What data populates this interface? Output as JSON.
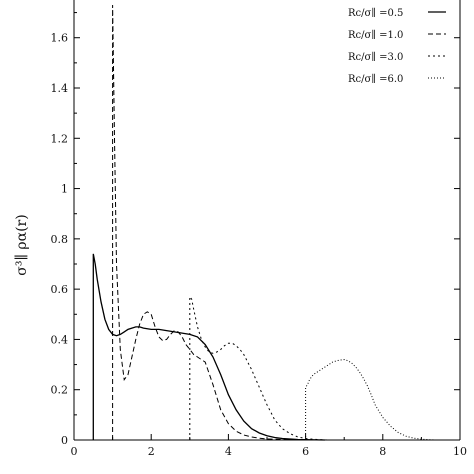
{
  "chart_data": {
    "type": "line",
    "title": "",
    "xlabel": "",
    "ylabel": "σ³∥ ρα(r)",
    "xlim": [
      0,
      10
    ],
    "ylim": [
      0,
      1.75
    ],
    "x_ticks": [
      0,
      2,
      4,
      6,
      8,
      10
    ],
    "y_ticks": [
      0,
      0.2,
      0.4,
      0.6,
      0.8,
      1,
      1.2,
      1.4,
      1.6
    ],
    "x_tick_labels": [
      "0",
      "2",
      "4",
      "6",
      "8",
      "10"
    ],
    "y_tick_labels": [
      "0",
      "0.2",
      "0.4",
      "0.6",
      "0.8",
      "1",
      "1.2",
      "1.4",
      "1.6"
    ],
    "grid": false,
    "legend_position": "top-right",
    "series": [
      {
        "name": "Rc/σ∥ =0.5",
        "style": "solid",
        "x": [
          0.5,
          0.5,
          0.55,
          0.6,
          0.7,
          0.8,
          0.9,
          1.0,
          1.1,
          1.2,
          1.3,
          1.4,
          1.5,
          1.6,
          1.7,
          1.8,
          2.0,
          2.2,
          2.4,
          2.6,
          2.8,
          3.0,
          3.2,
          3.4,
          3.6,
          3.8,
          4.0,
          4.2,
          4.4,
          4.6,
          4.8,
          5.0,
          5.2,
          5.4,
          5.6,
          5.8,
          6.0,
          6.5
        ],
        "y": [
          0.0,
          0.74,
          0.7,
          0.64,
          0.55,
          0.48,
          0.44,
          0.42,
          0.415,
          0.42,
          0.43,
          0.44,
          0.445,
          0.45,
          0.45,
          0.445,
          0.44,
          0.44,
          0.435,
          0.43,
          0.425,
          0.42,
          0.41,
          0.38,
          0.33,
          0.26,
          0.18,
          0.12,
          0.075,
          0.045,
          0.028,
          0.017,
          0.01,
          0.006,
          0.004,
          0.002,
          0.001,
          0.0
        ]
      },
      {
        "name": "Rc/σ∥ =1.0",
        "style": "dashed",
        "x": [
          1.0,
          1.0,
          1.05,
          1.1,
          1.2,
          1.3,
          1.4,
          1.5,
          1.6,
          1.7,
          1.8,
          1.9,
          2.0,
          2.1,
          2.2,
          2.3,
          2.4,
          2.5,
          2.6,
          2.7,
          2.8,
          2.9,
          3.0,
          3.1,
          3.2,
          3.4,
          3.6,
          3.8,
          4.0,
          4.2,
          4.4,
          4.6,
          4.8,
          5.0,
          5.2,
          5.4,
          5.6,
          5.8,
          6.0
        ],
        "y": [
          0.0,
          1.73,
          1.2,
          0.7,
          0.36,
          0.24,
          0.26,
          0.33,
          0.4,
          0.46,
          0.5,
          0.51,
          0.5,
          0.45,
          0.41,
          0.395,
          0.4,
          0.42,
          0.435,
          0.43,
          0.41,
          0.38,
          0.36,
          0.34,
          0.33,
          0.31,
          0.22,
          0.12,
          0.065,
          0.035,
          0.02,
          0.012,
          0.007,
          0.004,
          0.003,
          0.002,
          0.001,
          0.0,
          0.0
        ]
      },
      {
        "name": "Rc/σ∥ =3.0",
        "style": "dash-dot",
        "x": [
          3.0,
          3.0,
          3.05,
          3.1,
          3.2,
          3.3,
          3.4,
          3.5,
          3.6,
          3.7,
          3.8,
          3.9,
          4.0,
          4.1,
          4.2,
          4.3,
          4.4,
          4.5,
          4.6,
          4.7,
          4.8,
          4.9,
          5.0,
          5.1,
          5.2,
          5.4,
          5.6,
          5.8,
          6.0,
          6.2,
          6.4,
          6.6
        ],
        "y": [
          0.0,
          0.57,
          0.56,
          0.52,
          0.45,
          0.4,
          0.37,
          0.35,
          0.345,
          0.35,
          0.36,
          0.375,
          0.385,
          0.385,
          0.375,
          0.36,
          0.34,
          0.31,
          0.28,
          0.245,
          0.21,
          0.175,
          0.14,
          0.11,
          0.08,
          0.045,
          0.025,
          0.012,
          0.006,
          0.003,
          0.001,
          0.0
        ]
      },
      {
        "name": "Rc/σ∥ =6.0",
        "style": "dotted",
        "x": [
          6.0,
          6.0,
          6.05,
          6.1,
          6.2,
          6.3,
          6.4,
          6.5,
          6.6,
          6.7,
          6.8,
          6.9,
          7.0,
          7.1,
          7.2,
          7.3,
          7.4,
          7.5,
          7.6,
          7.7,
          7.8,
          8.0,
          8.2,
          8.4,
          8.6,
          8.8,
          9.0,
          9.2,
          9.4,
          9.6,
          9.8,
          10.0
        ],
        "y": [
          0.0,
          0.21,
          0.22,
          0.24,
          0.26,
          0.27,
          0.28,
          0.29,
          0.3,
          0.31,
          0.315,
          0.318,
          0.32,
          0.315,
          0.305,
          0.29,
          0.27,
          0.245,
          0.215,
          0.18,
          0.14,
          0.09,
          0.055,
          0.03,
          0.015,
          0.007,
          0.003,
          0.001,
          0.0,
          0.0,
          0.0,
          0.0
        ]
      }
    ]
  }
}
